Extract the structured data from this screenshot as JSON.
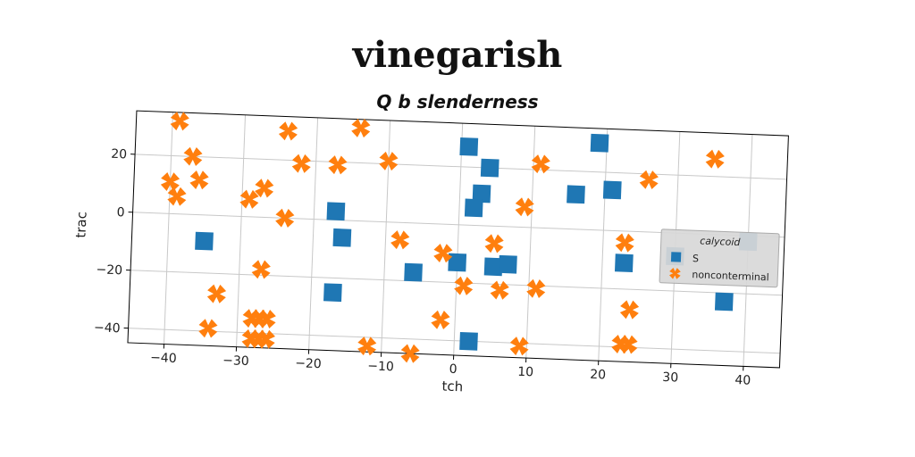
{
  "title": "vinegarish",
  "subtitle": "Q b slenderness",
  "chart_data": {
    "type": "scatter",
    "xlabel": "tch",
    "ylabel": "trac",
    "xlim": [
      -45,
      45
    ],
    "ylim": [
      -45,
      35
    ],
    "xticks": [
      -40,
      -30,
      -20,
      -10,
      0,
      10,
      20,
      30,
      40
    ],
    "yticks": [
      -40,
      -20,
      0,
      20
    ],
    "grid": true,
    "legend": {
      "title": "calycoid",
      "position": "right",
      "entries": [
        "S",
        "nonconterminal"
      ]
    },
    "series": [
      {
        "name": "S",
        "marker": "square",
        "color": "#1f77b4",
        "x": [
          1,
          4,
          3,
          2,
          16,
          19,
          21,
          23,
          30,
          40,
          37,
          -17,
          -16,
          -35,
          -17,
          -6,
          0,
          5,
          7,
          2
        ],
        "y": [
          27,
          20,
          11,
          6,
          12,
          30,
          14,
          -11,
          -8,
          -2,
          -23,
          3,
          -6,
          -9,
          -25,
          -17,
          -13,
          -14,
          -13,
          -40
        ]
      },
      {
        "name": "nonconterminal",
        "marker": "x",
        "color": "#ff7f0e",
        "x": [
          -39,
          -37,
          -36,
          -40,
          -39,
          -24,
          -22,
          -17,
          -14,
          -10,
          -27,
          -29,
          -24,
          -27,
          -33,
          -34,
          -28,
          -27,
          -26,
          -28,
          -27,
          -26,
          -12,
          -8,
          -6,
          -2,
          -2,
          1,
          5,
          6,
          9,
          9,
          11,
          11,
          23,
          24,
          26,
          24,
          35,
          23
        ],
        "y": [
          32,
          20,
          12,
          11,
          6,
          30,
          19,
          19,
          32,
          21,
          10,
          6,
          0,
          -18,
          -27,
          -39,
          -35,
          -35,
          -35,
          -42,
          -42,
          -42,
          -43,
          -6,
          -45,
          -10,
          -33,
          -21,
          -6,
          -22,
          7,
          -41,
          22,
          -21,
          -4,
          -27,
          18,
          -39,
          26,
          -39
        ]
      }
    ]
  }
}
